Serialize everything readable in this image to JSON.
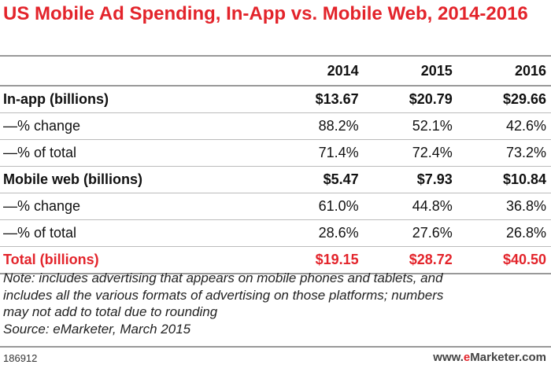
{
  "title": "US Mobile Ad Spending, In-App vs. Mobile Web, 2014-2016",
  "table": {
    "columns": [
      "2014",
      "2015",
      "2016"
    ],
    "rows": [
      {
        "label": "In-app (billions)",
        "values": [
          "$13.67",
          "$20.79",
          "$29.66"
        ]
      },
      {
        "label": "—% change",
        "values": [
          "88.2%",
          "52.1%",
          "42.6%"
        ]
      },
      {
        "label": "—% of total",
        "values": [
          "71.4%",
          "72.4%",
          "73.2%"
        ]
      },
      {
        "label": "Mobile web (billions)",
        "values": [
          "$5.47",
          "$7.93",
          "$10.84"
        ]
      },
      {
        "label": "—% change",
        "values": [
          "61.0%",
          "44.8%",
          "36.8%"
        ]
      },
      {
        "label": "—% of total",
        "values": [
          "28.6%",
          "27.6%",
          "26.8%"
        ]
      },
      {
        "label": "Total (billions)",
        "values": [
          "$19.15",
          "$28.72",
          "$40.50"
        ]
      }
    ]
  },
  "note": [
    "Note: includes advertising that appears on mobile phones and tablets, and",
    "includes all the various formats of advertising on those platforms; numbers",
    "may not add to total due to rounding"
  ],
  "source": "Source: eMarketer, March 2015",
  "footer": {
    "code": "186912",
    "logo": [
      "www.",
      "e",
      "Marketer",
      ".com"
    ]
  }
}
